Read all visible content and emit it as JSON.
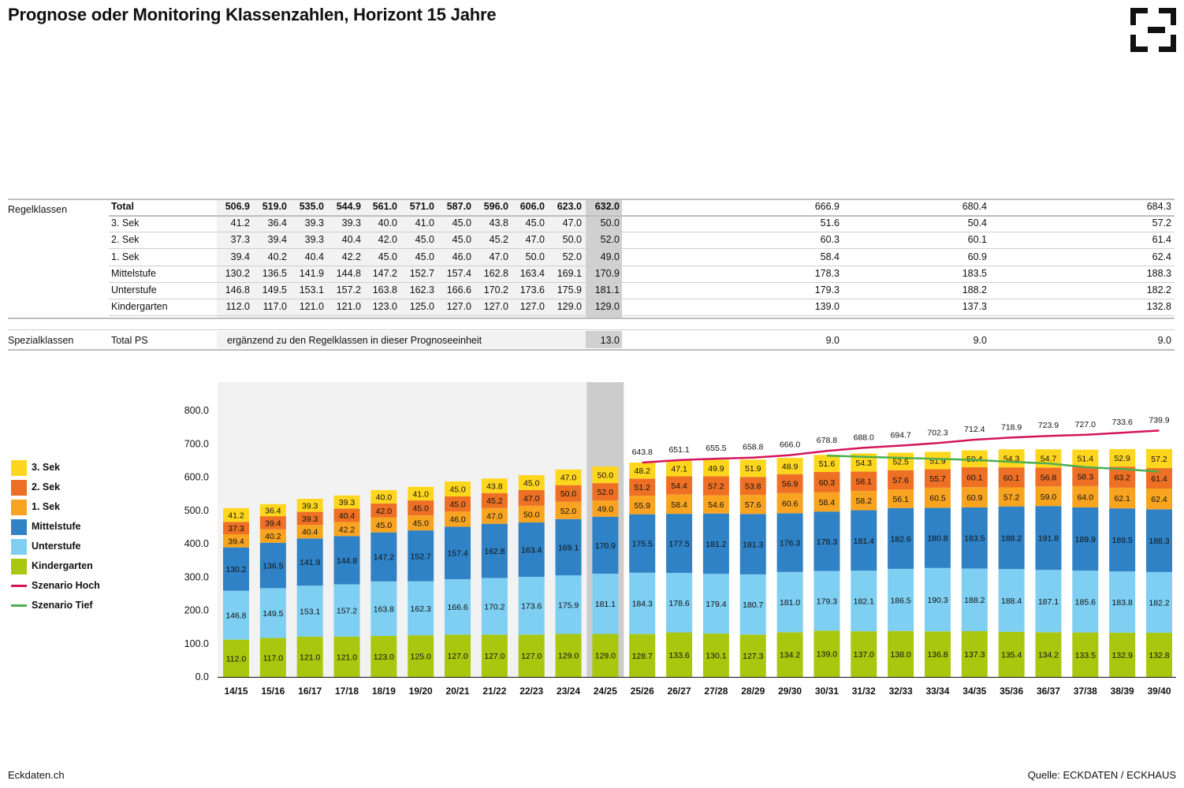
{
  "title": "Prognose oder Monitoring Klassenzahlen, Horizont 15 Jahre",
  "footer": {
    "source": "Quelle: ECKDATEN / ECKHAUS",
    "site": "Eckdaten.ch"
  },
  "table": {
    "group_regel": "Regelklassen",
    "group_spezial": "Spezialklassen",
    "spezial_label": "Total PS",
    "spezial_note": "ergänzend zu den Regelklassen in dieser Prognoseeinheit",
    "spezial_values": {
      "current": "13.0",
      "f1": "9.0",
      "f2": "9.0",
      "f3": "9.0"
    },
    "rows": [
      {
        "label": "Total",
        "bold": true,
        "hist": [
          "506.9",
          "519.0",
          "535.0",
          "544.9",
          "561.0",
          "571.0",
          "587.0",
          "596.0",
          "606.0",
          "623.0"
        ],
        "current": "632.0",
        "future": [
          "666.9",
          "680.4",
          "684.3"
        ]
      },
      {
        "label": "3. Sek",
        "hist": [
          "41.2",
          "36.4",
          "39.3",
          "39.3",
          "40.0",
          "41.0",
          "45.0",
          "43.8",
          "45.0",
          "47.0"
        ],
        "current": "50.0",
        "future": [
          "51.6",
          "50.4",
          "57.2"
        ]
      },
      {
        "label": "2. Sek",
        "hist": [
          "37.3",
          "39.4",
          "39.3",
          "40.4",
          "42.0",
          "45.0",
          "45.0",
          "45.2",
          "47.0",
          "50.0"
        ],
        "current": "52.0",
        "future": [
          "60.3",
          "60.1",
          "61.4"
        ]
      },
      {
        "label": "1. Sek",
        "hist": [
          "39.4",
          "40.2",
          "40.4",
          "42.2",
          "45.0",
          "45.0",
          "46.0",
          "47.0",
          "50.0",
          "52.0"
        ],
        "current": "49.0",
        "future": [
          "58.4",
          "60.9",
          "62.4"
        ]
      },
      {
        "label": "Mittelstufe",
        "hist": [
          "130.2",
          "136.5",
          "141.9",
          "144.8",
          "147.2",
          "152.7",
          "157.4",
          "162.8",
          "163.4",
          "169.1"
        ],
        "current": "170.9",
        "future": [
          "178.3",
          "183.5",
          "188.3"
        ]
      },
      {
        "label": "Unterstufe",
        "hist": [
          "146.8",
          "149.5",
          "153.1",
          "157.2",
          "163.8",
          "162.3",
          "166.6",
          "170.2",
          "173.6",
          "175.9"
        ],
        "current": "181.1",
        "future": [
          "179.3",
          "188.2",
          "182.2"
        ]
      },
      {
        "label": "Kindergarten",
        "hist": [
          "112.0",
          "117.0",
          "121.0",
          "121.0",
          "123.0",
          "125.0",
          "127.0",
          "127.0",
          "127.0",
          "129.0"
        ],
        "current": "129.0",
        "future": [
          "139.0",
          "137.3",
          "132.8"
        ]
      }
    ]
  },
  "legend": [
    {
      "name": "3. Sek",
      "color": "#FFD61E",
      "kind": "box"
    },
    {
      "name": "2. Sek",
      "color": "#EE7024",
      "kind": "box"
    },
    {
      "name": "1. Sek",
      "color": "#F8A421",
      "kind": "box"
    },
    {
      "name": "Mittelstufe",
      "color": "#2F82C5",
      "kind": "box"
    },
    {
      "name": "Unterstufe",
      "color": "#7ECFF2",
      "kind": "box"
    },
    {
      "name": "Kindergarten",
      "color": "#A9C70E",
      "kind": "box"
    },
    {
      "name": "Szenario Hoch",
      "color": "#D4145A",
      "kind": "line"
    },
    {
      "name": "Szenario Tief",
      "color": "#4BAE4F",
      "kind": "line"
    }
  ],
  "chart_data": {
    "type": "bar",
    "stacked": true,
    "categories": [
      "14/15",
      "15/16",
      "16/17",
      "17/18",
      "18/19",
      "19/20",
      "20/21",
      "21/22",
      "22/23",
      "23/24",
      "24/25",
      "25/26",
      "26/27",
      "27/28",
      "28/29",
      "29/30",
      "30/31",
      "31/32",
      "32/33",
      "33/34",
      "34/35",
      "35/36",
      "36/37",
      "37/38",
      "38/39",
      "39/40"
    ],
    "ylim": [
      0,
      800
    ],
    "yticks": [
      "0.0",
      "100.0",
      "200.0",
      "300.0",
      "400.0",
      "500.0",
      "600.0",
      "700.0",
      "800.0"
    ],
    "grid": false,
    "legend_position": "left",
    "historical_count": 10,
    "current_index": 10,
    "series": [
      {
        "name": "Kindergarten",
        "color": "#A9C70E",
        "values": [
          112.0,
          117.0,
          121.0,
          121.0,
          123.0,
          125.0,
          127.0,
          127.0,
          127.0,
          129.0,
          129.0,
          128.7,
          133.6,
          130.1,
          127.3,
          134.2,
          139.0,
          137.0,
          138.0,
          136.8,
          137.3,
          135.4,
          134.2,
          133.5,
          132.9,
          132.8
        ]
      },
      {
        "name": "Unterstufe",
        "color": "#7ECFF2",
        "values": [
          146.8,
          149.5,
          153.1,
          157.2,
          163.8,
          162.3,
          166.6,
          170.2,
          173.6,
          175.9,
          181.1,
          184.3,
          178.6,
          179.4,
          180.7,
          181.0,
          179.3,
          182.1,
          186.5,
          190.3,
          188.2,
          188.4,
          187.1,
          185.6,
          183.8,
          182.2
        ]
      },
      {
        "name": "Mittelstufe",
        "color": "#2F82C5",
        "values": [
          130.2,
          136.5,
          141.9,
          144.8,
          147.2,
          152.7,
          157.4,
          162.8,
          163.4,
          169.1,
          170.9,
          175.5,
          177.5,
          181.2,
          181.3,
          176.3,
          178.3,
          181.4,
          182.6,
          180.8,
          183.5,
          188.2,
          191.8,
          189.9,
          189.5,
          188.3
        ]
      },
      {
        "name": "1. Sek",
        "color": "#F8A421",
        "values": [
          39.4,
          40.2,
          40.4,
          42.2,
          45.0,
          45.0,
          46.0,
          47.0,
          50.0,
          52.0,
          49.0,
          55.9,
          58.4,
          54.6,
          57.6,
          60.6,
          58.4,
          58.2,
          56.1,
          60.5,
          60.9,
          57.2,
          59.0,
          64.0,
          62.1,
          62.4
        ]
      },
      {
        "name": "2. Sek",
        "color": "#EE7024",
        "values": [
          37.3,
          39.4,
          39.3,
          40.4,
          42.0,
          45.0,
          45.0,
          45.2,
          47.0,
          50.0,
          52.0,
          51.2,
          54.4,
          57.2,
          53.8,
          56.9,
          60.3,
          58.1,
          57.6,
          55.7,
          60.1,
          60.1,
          56.8,
          58.3,
          63.2,
          61.4
        ]
      },
      {
        "name": "3. Sek",
        "color": "#FFD61E",
        "values": [
          41.2,
          36.4,
          39.3,
          39.3,
          40.0,
          41.0,
          45.0,
          43.8,
          45.0,
          47.0,
          50.0,
          48.2,
          47.1,
          49.9,
          51.9,
          48.9,
          51.6,
          54.3,
          52.5,
          51.9,
          50.4,
          54.3,
          54.7,
          51.4,
          52.9,
          57.2
        ]
      }
    ],
    "lines": [
      {
        "name": "Szenario Hoch",
        "color": "#D4145A",
        "start_index": 11,
        "values": [
          643.8,
          651.1,
          655.5,
          658.8,
          666.0,
          678.8,
          688.0,
          694.7,
          702.3,
          712.4,
          718.9,
          723.9,
          727.0,
          733.6,
          739.9
        ],
        "labels": [
          "643.8",
          "651.1",
          "655.5",
          "658.8",
          "666.0",
          "678.8",
          "688.0",
          "694.7",
          "702.3",
          "712.4",
          "718.9",
          "723.9",
          "727.0",
          "733.6",
          "739.9"
        ]
      },
      {
        "name": "Szenario Tief",
        "color": "#4BAE4F",
        "start_index": 16,
        "values": [
          664.8,
          661.0,
          658.0,
          654.6,
          651.8,
          645.8,
          641.2,
          630.3,
          624.2,
          616.5
        ]
      }
    ]
  }
}
